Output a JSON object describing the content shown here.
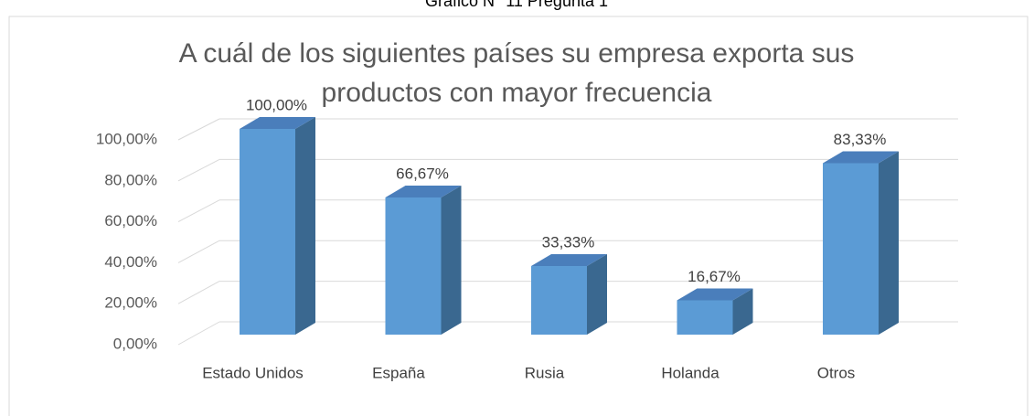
{
  "caption": "Gráfico N° 11 Pregunta 1",
  "chart_data": {
    "type": "bar3d",
    "title": [
      "A cuál de los siguientes países su empresa exporta sus",
      "productos con mayor frecuencia"
    ],
    "categories": [
      "Estado Unidos",
      "España",
      "Rusia",
      "Holanda",
      "Otros"
    ],
    "values": [
      100,
      66.67,
      33.33,
      16.67,
      83.33
    ],
    "value_labels": [
      "100,00%",
      "66,67%",
      "33,33%",
      "16,67%",
      "83,33%"
    ],
    "color": "#5b9bd5",
    "ylim": [
      0,
      100
    ],
    "yticks": [
      {
        "value": 0,
        "label": "0,00%"
      },
      {
        "value": 20,
        "label": "20,00%"
      },
      {
        "value": 40,
        "label": "40,00%"
      },
      {
        "value": 60,
        "label": "60,00%"
      },
      {
        "value": 80,
        "label": "80,00%"
      },
      {
        "value": 100,
        "label": "100,00%"
      }
    ],
    "grid": true
  }
}
